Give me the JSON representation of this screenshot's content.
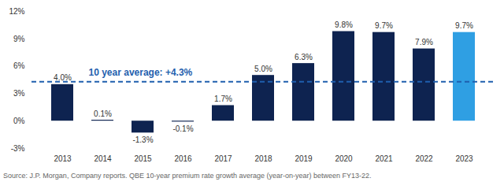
{
  "chart_data": {
    "type": "bar",
    "categories": [
      "2013",
      "2014",
      "2015",
      "2016",
      "2017",
      "2018",
      "2019",
      "2020",
      "2021",
      "2022",
      "2023"
    ],
    "values": [
      4.0,
      0.1,
      -1.3,
      -0.1,
      1.7,
      5.0,
      6.3,
      9.8,
      9.7,
      7.9,
      9.7
    ],
    "value_labels": [
      "4.0%",
      "0.1%",
      "-1.3%",
      "-0.1%",
      "1.7%",
      "5.0%",
      "6.3%",
      "9.8%",
      "9.7%",
      "7.9%",
      "9.7%"
    ],
    "colors": [
      "#0e2350",
      "#0e2350",
      "#0e2350",
      "#0e2350",
      "#0e2350",
      "#0e2350",
      "#0e2350",
      "#0e2350",
      "#0e2350",
      "#0e2350",
      "#2f9fe3"
    ],
    "ylim": [
      -3,
      12
    ],
    "yticks": [
      {
        "value": -3,
        "label": "-3%"
      },
      {
        "value": 0,
        "label": "0%"
      },
      {
        "value": 3,
        "label": "3%"
      },
      {
        "value": 6,
        "label": "6%"
      },
      {
        "value": 9,
        "label": "9%"
      },
      {
        "value": 12,
        "label": "12%"
      }
    ],
    "grid": false,
    "data_labels": true,
    "annotations": [
      {
        "text": "10 year average: +4.3%",
        "y": 4.3,
        "line_style": "dashed",
        "color": "#1f5fae"
      }
    ],
    "caption": "Source: J.P. Morgan, Company reports. QBE 10-year premium rate growth average (year-on-year) between FY13-22."
  }
}
